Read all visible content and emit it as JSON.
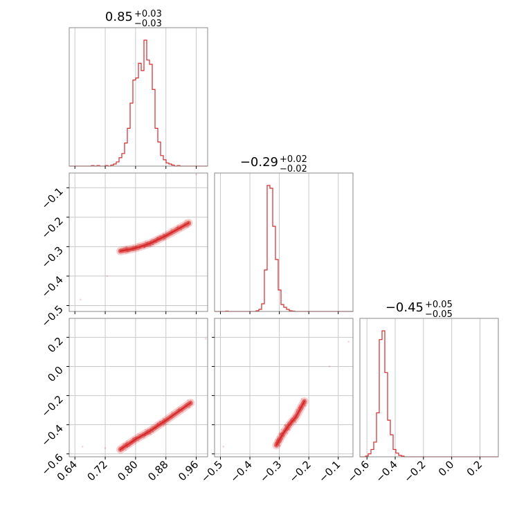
{
  "chart_data": {
    "type": "corner",
    "color": "#d62728",
    "grid": true,
    "panels": {
      "p1": {
        "type": "histogram",
        "title": {
          "median": "0.85",
          "plus": "+0.03",
          "minus": "−0.03"
        },
        "x_range": [
          0.625,
          0.99
        ],
        "bins_edges_start": 0.625,
        "bin_width": 0.0073,
        "counts": [
          0,
          0,
          0,
          0,
          0,
          0,
          0,
          0,
          0.5,
          0,
          0.5,
          0,
          0,
          0.5,
          0,
          1,
          2,
          4,
          8,
          12,
          22,
          36,
          60,
          82,
          84,
          98,
          91,
          120,
          101,
          97,
          73,
          36,
          23,
          10,
          6,
          3,
          2,
          1,
          0,
          0.5,
          0,
          0,
          0,
          0,
          0,
          0,
          0,
          0,
          0,
          0
        ],
        "x_ticks": [
          0.64,
          0.72,
          0.8,
          0.88,
          0.96
        ]
      },
      "p2": {
        "type": "histogram",
        "title": {
          "median": "−0.29",
          "plus": "+0.02",
          "minus": "−0.02"
        },
        "x_range": [
          -0.52,
          -0.05
        ],
        "bins_edges_start": -0.52,
        "bin_width": 0.0094,
        "counts": [
          0,
          0,
          0,
          0,
          0.5,
          0,
          0,
          0,
          0,
          0,
          0,
          0,
          0,
          0,
          0,
          1,
          3,
          11,
          60,
          182,
          178,
          123,
          75,
          31,
          10,
          6,
          3,
          1,
          0.5,
          0,
          0,
          0,
          0,
          0,
          0,
          0,
          0,
          0,
          0,
          0,
          0,
          0,
          0,
          0,
          0,
          0,
          0,
          0,
          0,
          0
        ],
        "x_ticks": [
          -0.5,
          -0.4,
          -0.3,
          -0.2,
          -0.1
        ]
      },
      "p3": {
        "type": "histogram",
        "title": {
          "median": "−0.45",
          "plus": "+0.05",
          "minus": "−0.05"
        },
        "x_range": [
          -0.65,
          0.33
        ],
        "bins_edges_start": -0.65,
        "bin_width": 0.0196,
        "counts": [
          0,
          0,
          1,
          4,
          10,
          20,
          60,
          160,
          172,
          115,
          50,
          30,
          10,
          5,
          2,
          1,
          0,
          0,
          0,
          0,
          0,
          0,
          0,
          0,
          0,
          0,
          0,
          0,
          0,
          0,
          0,
          0,
          0,
          0,
          0,
          0,
          0,
          0,
          0,
          0,
          0,
          0,
          0,
          0,
          0,
          0,
          0,
          0,
          0,
          0
        ],
        "x_ticks": [
          -0.6,
          -0.4,
          -0.2,
          0.0,
          0.2
        ]
      },
      "s21": {
        "type": "scatter-contour",
        "x_range": [
          0.625,
          0.99
        ],
        "y_range": [
          -0.52,
          -0.05
        ],
        "y_ticks": [
          -0.1,
          -0.2,
          -0.3,
          -0.4,
          -0.5
        ],
        "trend": [
          [
            0.76,
            -0.315
          ],
          [
            0.8,
            -0.305
          ],
          [
            0.84,
            -0.288
          ],
          [
            0.88,
            -0.263
          ],
          [
            0.94,
            -0.22
          ]
        ],
        "outliers": [
          [
            0.655,
            -0.48
          ],
          [
            0.725,
            -0.4
          ],
          [
            0.96,
            -0.055
          ]
        ]
      },
      "s31": {
        "type": "scatter-contour",
        "x_range": [
          0.625,
          0.99
        ],
        "y_range": [
          -0.62,
          0.33
        ],
        "y_ticks": [
          0.2,
          0.0,
          -0.2,
          -0.4,
          -0.6
        ],
        "trend": [
          [
            0.76,
            -0.57
          ],
          [
            0.8,
            -0.5
          ],
          [
            0.84,
            -0.44
          ],
          [
            0.88,
            -0.37
          ],
          [
            0.945,
            -0.25
          ]
        ],
        "outliers": [
          [
            0.66,
            -0.55
          ],
          [
            0.72,
            -0.56
          ],
          [
            0.985,
            0.19
          ]
        ]
      },
      "s32": {
        "type": "scatter-contour",
        "x_range": [
          -0.52,
          -0.05
        ],
        "y_range": [
          -0.62,
          0.33
        ],
        "trend": [
          [
            -0.31,
            -0.54
          ],
          [
            -0.29,
            -0.47
          ],
          [
            -0.27,
            -0.41
          ],
          [
            -0.245,
            -0.35
          ],
          [
            -0.215,
            -0.24
          ]
        ],
        "outliers": [
          [
            -0.49,
            -0.55
          ],
          [
            -0.13,
            0.0
          ],
          [
            -0.065,
            0.17
          ]
        ]
      }
    }
  }
}
